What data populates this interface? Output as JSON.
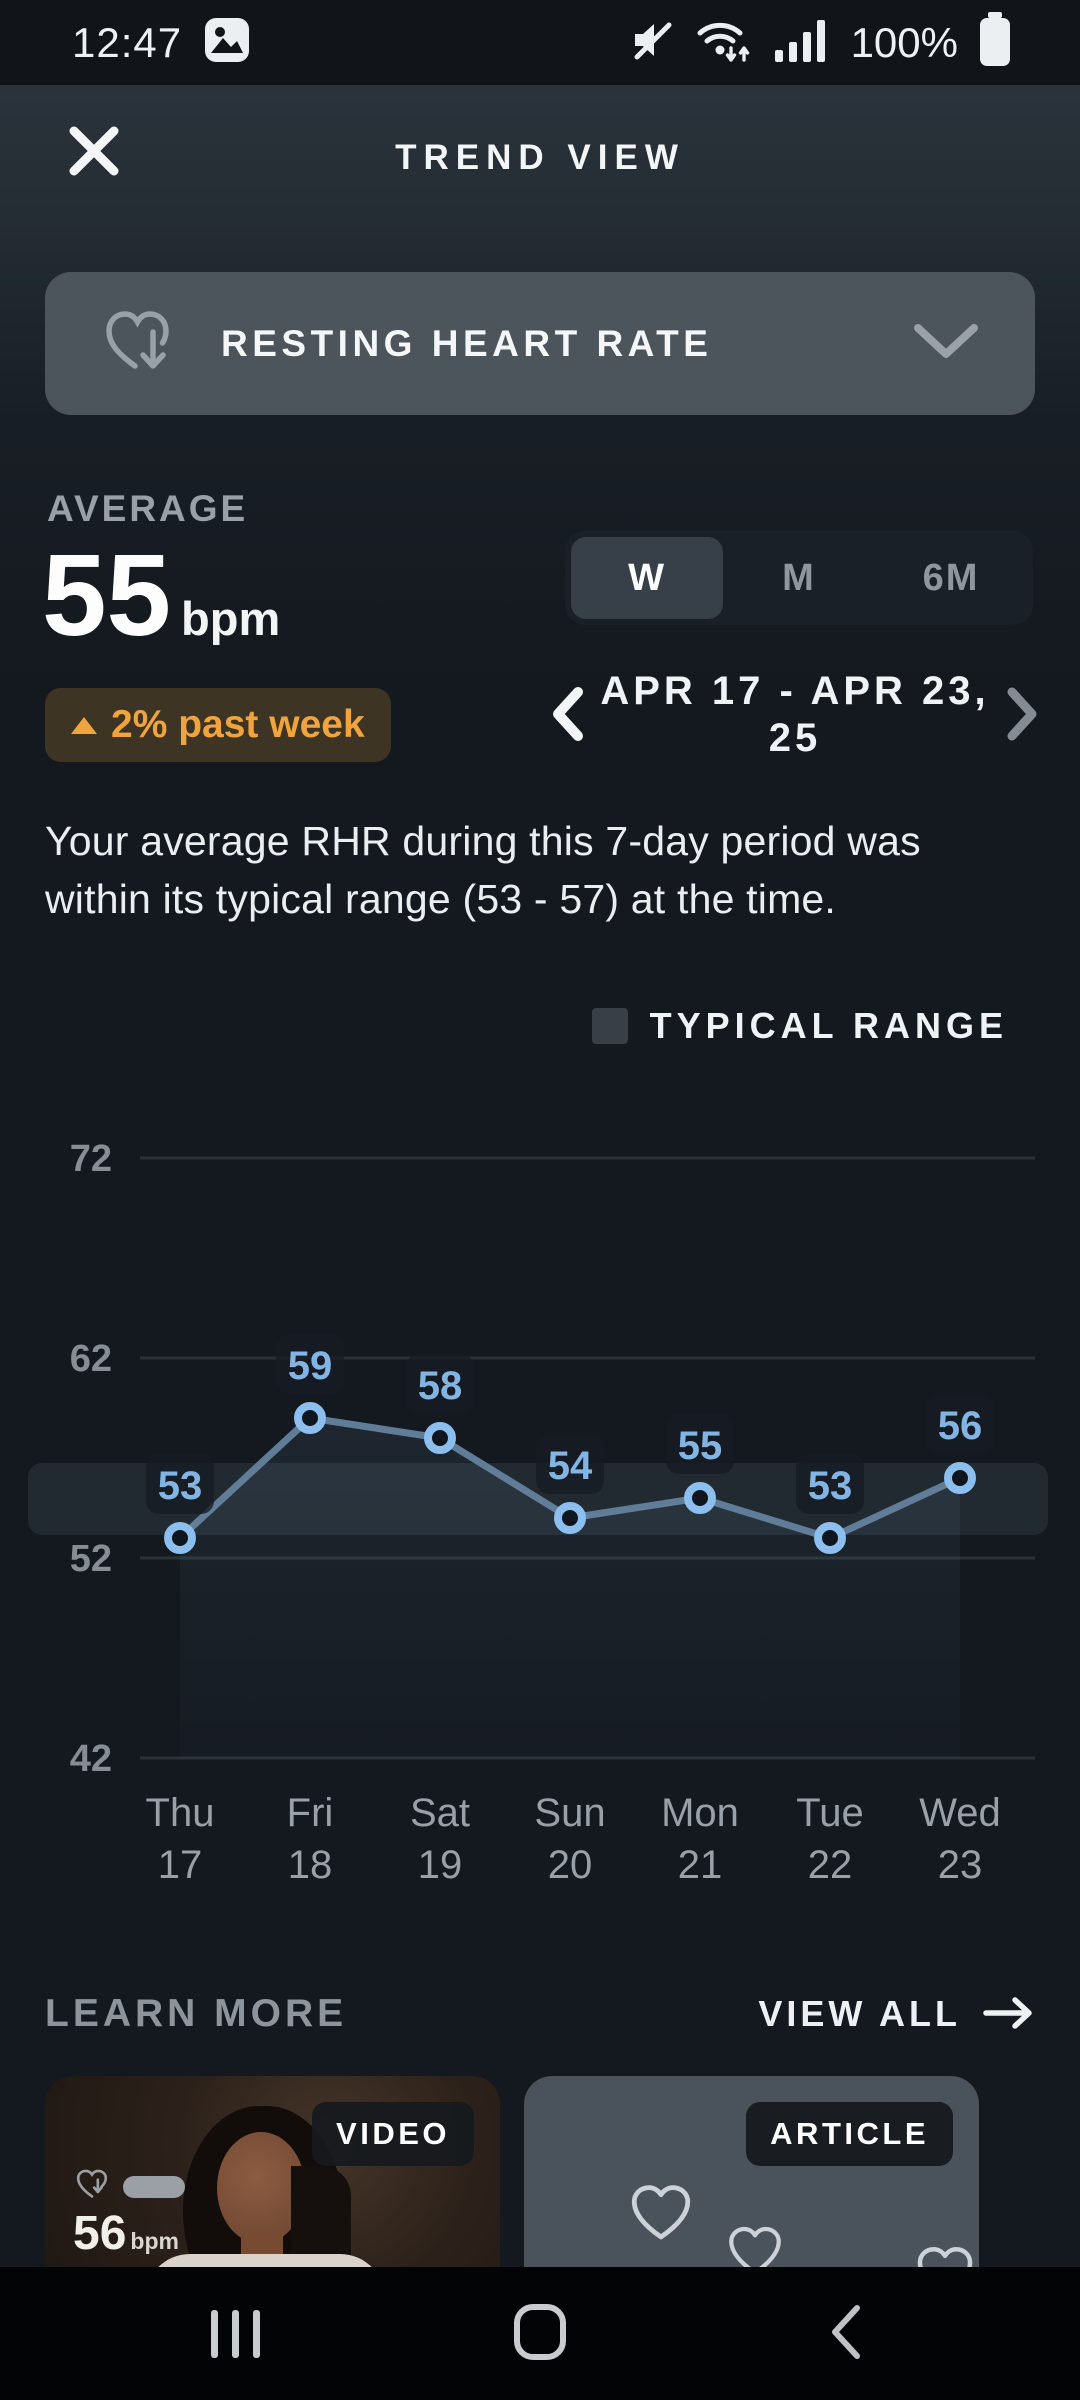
{
  "status_bar": {
    "time": "12:47",
    "battery_percent": "100%"
  },
  "header": {
    "title": "TREND VIEW"
  },
  "metric_selector": {
    "label": "RESTING HEART RATE"
  },
  "average": {
    "label": "AVERAGE",
    "value": "55",
    "unit": "bpm",
    "change_badge": "2% past week"
  },
  "range_tabs": {
    "options": [
      {
        "label": "W",
        "selected": true
      },
      {
        "label": "M",
        "selected": false
      },
      {
        "label": "6M",
        "selected": false
      }
    ]
  },
  "date_nav": {
    "line1": "APR 17 - APR 23,",
    "line2": "25"
  },
  "summary": {
    "text": "Your average RHR during this 7-day period was within its typical range (53 - 57) at the time."
  },
  "legend": {
    "label": "TYPICAL RANGE"
  },
  "chart_data": {
    "type": "line",
    "series_name": "Resting heart rate",
    "unit": "bpm",
    "categories": [
      "Thu 17",
      "Fri 18",
      "Sat 19",
      "Sun 20",
      "Mon 21",
      "Tue 22",
      "Wed 23"
    ],
    "category_days": [
      "Thu",
      "Fri",
      "Sat",
      "Sun",
      "Mon",
      "Tue",
      "Wed"
    ],
    "category_dates": [
      "17",
      "18",
      "19",
      "20",
      "21",
      "22",
      "23"
    ],
    "values": [
      53,
      59,
      58,
      54,
      55,
      53,
      56
    ],
    "yticks": [
      72,
      62,
      52,
      42
    ],
    "ylim": [
      42,
      72
    ],
    "typical_range": [
      53,
      57
    ],
    "legend": [
      "TYPICAL RANGE"
    ],
    "grid": "horizontal",
    "colors": {
      "line": "#64829e",
      "marker_stroke": "#8cbeee",
      "marker_fill": "#0f161d",
      "point_label": "#82b4e4",
      "band": "rgba(158,178,200,0.11)",
      "gridline": "#2a3137",
      "tick_label": "#868d94",
      "area_fill": "rgba(120,155,195,0.08)"
    }
  },
  "learn_more": {
    "title": "LEARN MORE",
    "view_all_label": "VIEW ALL",
    "cards": [
      {
        "type_badge": "VIDEO",
        "overlay_value": "56",
        "overlay_unit": "bpm"
      },
      {
        "type_badge": "ARTICLE"
      }
    ]
  },
  "colors": {
    "accent_blue": "#82b4e4",
    "badge_orange": "#f1a43d",
    "background": "#14191f"
  }
}
